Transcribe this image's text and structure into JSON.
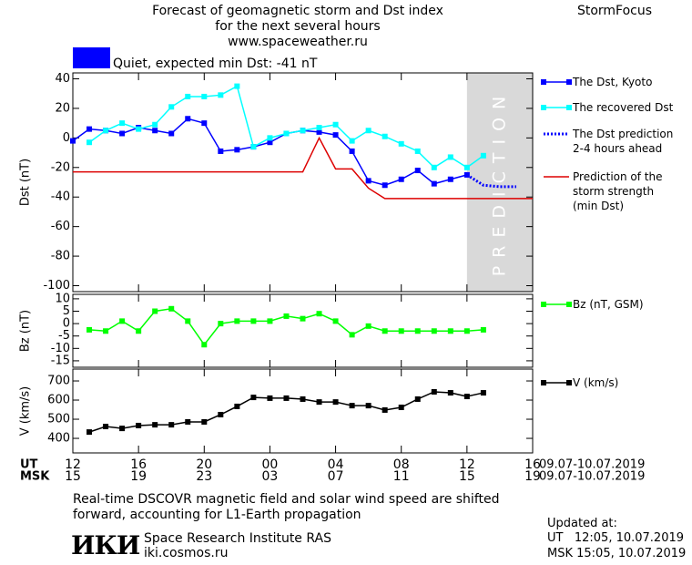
{
  "header": {
    "title_lines": [
      "Forecast of geomagnetic storm and Dst index",
      "for the next several hours",
      "www.spaceweather.ru"
    ],
    "brand": "StormFocus",
    "status": {
      "color": "#0000ff",
      "label": "Quiet, expected min Dst: -41 nT"
    }
  },
  "x_axis": {
    "xlim": [
      0,
      28
    ],
    "ut_label": "UT",
    "msk_label": "MSK",
    "xticks": [
      {
        "value": 0,
        "label": "12"
      },
      {
        "value": 4,
        "label": "16"
      },
      {
        "value": 8,
        "label": "20"
      },
      {
        "value": 12,
        "label": "00"
      },
      {
        "value": 16,
        "label": "04"
      },
      {
        "value": 20,
        "label": "08"
      },
      {
        "value": 24,
        "label": "12"
      },
      {
        "value": 28,
        "label": "16"
      }
    ],
    "msk_labels": [
      "15",
      "19",
      "23",
      "03",
      "07",
      "11",
      "15",
      "19"
    ],
    "ut_dates": "09.07-10.07.2019",
    "msk_dates": "09.07-10.07.2019"
  },
  "chart_data": [
    {
      "type": "line",
      "ylabel": "Dst (nT)",
      "ylim": [
        -104,
        44
      ],
      "yticks": [
        40,
        20,
        0,
        -20,
        -40,
        -60,
        -80,
        -100
      ],
      "prediction_band": {
        "xlim": [
          24,
          28
        ],
        "label": "PREDICTION",
        "color": "#d9d9d9"
      },
      "series": [
        {
          "name": "The Dst, Kyoto",
          "color": "#0000ff",
          "marker": "square",
          "dash": "none",
          "x": [
            0,
            1,
            2,
            3,
            4,
            5,
            6,
            7,
            8,
            9,
            10,
            11,
            12,
            13,
            14,
            15,
            16,
            17,
            18,
            19,
            20,
            21,
            22,
            23,
            24
          ],
          "values": [
            -2,
            6,
            5,
            3,
            7,
            5,
            3,
            13,
            10,
            -9,
            -8,
            -6,
            -3,
            3,
            5,
            4,
            2,
            -9,
            -29,
            -32,
            -28,
            -22,
            -31,
            -28,
            -25
          ]
        },
        {
          "name": "The recovered Dst",
          "color": "#00ffff",
          "marker": "square",
          "dash": "none",
          "x": [
            0,
            1,
            2,
            3,
            4,
            5,
            6,
            7,
            8,
            9,
            10,
            11,
            12,
            13,
            14,
            15,
            16,
            17,
            18,
            19,
            20,
            21,
            22,
            23,
            24,
            25
          ],
          "values": [
            null,
            -3,
            5,
            10,
            6,
            9,
            21,
            28,
            28,
            29,
            35,
            -6,
            0,
            3,
            5,
            7,
            9,
            -2,
            5,
            1,
            -4,
            -9,
            -20,
            -13,
            -20,
            -12
          ]
        },
        {
          "name": "The Dst prediction\n2-4 hours ahead",
          "color": "#0000ff",
          "marker": "none",
          "dash": "dotted",
          "x": [
            24,
            25,
            26,
            27
          ],
          "values": [
            -25,
            -32,
            -33,
            -33
          ]
        },
        {
          "name": "Prediction of the\nstorm strength\n(min Dst)",
          "color": "#dd0000",
          "marker": "none",
          "dash": "none",
          "x": [
            0,
            14,
            15,
            16,
            17,
            18,
            19,
            28
          ],
          "values": [
            -23,
            -23,
            0,
            -21,
            -21,
            -34,
            -41,
            -41
          ]
        }
      ]
    },
    {
      "type": "line",
      "ylabel": "Bz (nT)",
      "ylim": [
        -17.6,
        11.8
      ],
      "yticks": [
        10,
        5,
        0,
        -5,
        -10,
        -15
      ],
      "series": [
        {
          "name": "Bz (nT, GSM)",
          "color": "#00ff00",
          "marker": "square",
          "dash": "none",
          "x": [
            1,
            2,
            3,
            4,
            5,
            6,
            7,
            8,
            9,
            10,
            11,
            12,
            13,
            14,
            15,
            16,
            17,
            18,
            19,
            20,
            21,
            22,
            23,
            24,
            25
          ],
          "values": [
            -2.5,
            -3,
            1,
            -3,
            5,
            6,
            1,
            -8.5,
            0,
            1,
            1,
            1,
            3,
            2,
            4,
            1,
            -4.5,
            -1,
            -3,
            -3,
            -3,
            -3,
            -3,
            -3,
            -2.5
          ]
        }
      ]
    },
    {
      "type": "line",
      "ylabel": "V (km/s)",
      "ylim": [
        324,
        762
      ],
      "yticks": [
        700,
        600,
        500,
        400
      ],
      "series": [
        {
          "name": "V (km/s)",
          "color": "#000000",
          "marker": "square",
          "dash": "none",
          "x": [
            1,
            2,
            3,
            4,
            5,
            6,
            7,
            8,
            9,
            10,
            11,
            12,
            13,
            14,
            15,
            16,
            17,
            18,
            19,
            20,
            21,
            22,
            23,
            24,
            25
          ],
          "values": [
            433,
            462,
            452,
            467,
            471,
            471,
            486,
            486,
            524,
            567,
            614,
            610,
            610,
            605,
            590,
            590,
            571,
            571,
            548,
            562,
            605,
            643,
            638,
            619,
            638
          ]
        }
      ]
    }
  ],
  "footer": {
    "note": "Real-time DSCOVR magnetic field and solar wind speed are shifted\nforward, accounting for L1-Earth propagation",
    "logo": "ИКИ",
    "institute": "Space Research Institute RAS",
    "site": "iki.cosmos.ru",
    "updated_title": "Updated at:",
    "updated_ut": "UT   12:05, 10.07.2019",
    "updated_msk": "MSK 15:05, 10.07.2019"
  }
}
